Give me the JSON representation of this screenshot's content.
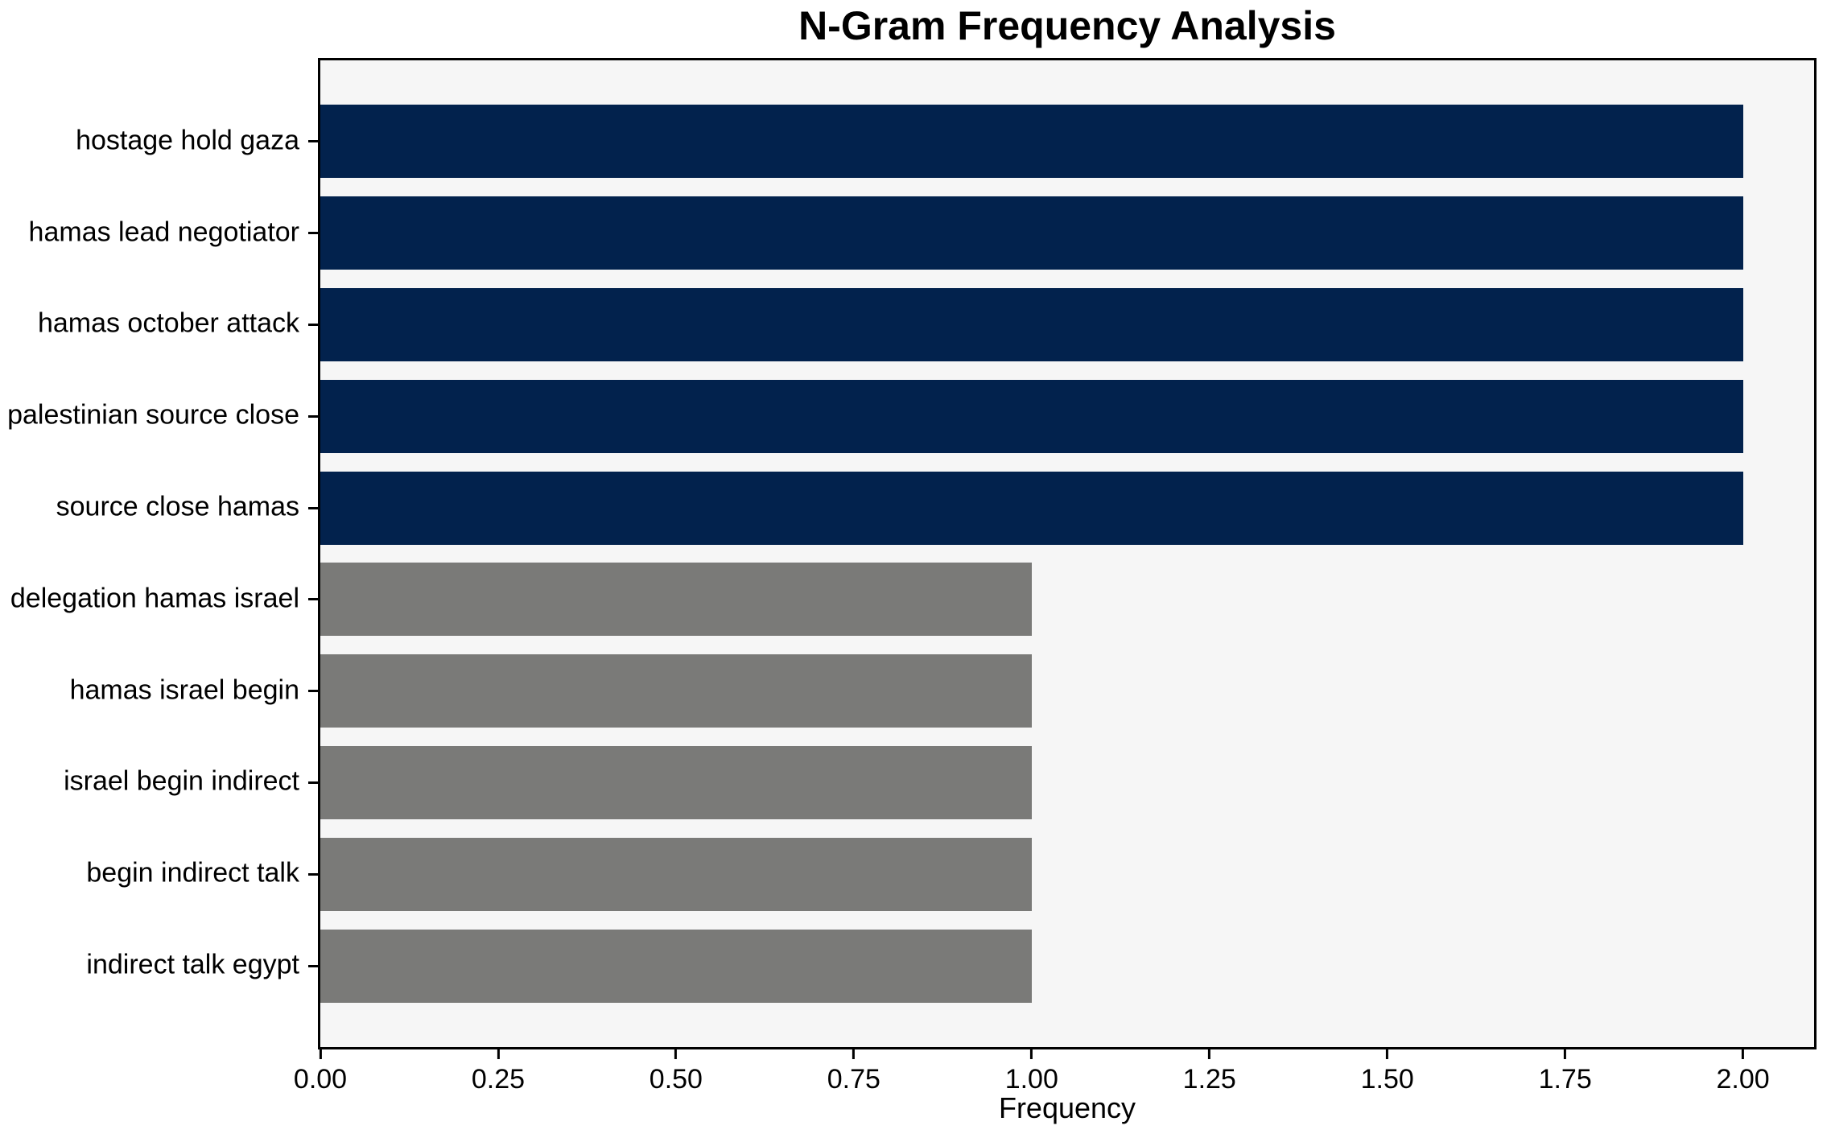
{
  "figure": {
    "background_color": "#ffffff",
    "plot_background_color": "#f6f6f6",
    "frame_color": "#000000"
  },
  "chart_data": {
    "type": "bar",
    "orientation": "horizontal",
    "title": "N-Gram Frequency Analysis",
    "xlabel": "Frequency",
    "ylabel": "",
    "grid": false,
    "legend": null,
    "categories": [
      "hostage hold gaza",
      "hamas lead negotiator",
      "hamas october attack",
      "palestinian source close",
      "source close hamas",
      "delegation hamas israel",
      "hamas israel begin",
      "israel begin indirect",
      "begin indirect talk",
      "indirect talk egypt"
    ],
    "values": [
      2.0,
      2.0,
      2.0,
      2.0,
      2.0,
      1.0,
      1.0,
      1.0,
      1.0,
      1.0
    ],
    "bar_colors": [
      "#02224d",
      "#02224d",
      "#02224d",
      "#02224d",
      "#02224d",
      "#7a7a78",
      "#7a7a78",
      "#7a7a78",
      "#7a7a78",
      "#7a7a78"
    ],
    "color_legend": {
      "high_frequency_color": "#02224d",
      "low_frequency_color": "#7a7a78"
    },
    "xlim": [
      0,
      2.1
    ],
    "xticks": [
      {
        "value": 0.0,
        "label": "0.00"
      },
      {
        "value": 0.25,
        "label": "0.25"
      },
      {
        "value": 0.5,
        "label": "0.50"
      },
      {
        "value": 0.75,
        "label": "0.75"
      },
      {
        "value": 1.0,
        "label": "1.00"
      },
      {
        "value": 1.25,
        "label": "1.25"
      },
      {
        "value": 1.5,
        "label": "1.50"
      },
      {
        "value": 1.75,
        "label": "1.75"
      },
      {
        "value": 2.0,
        "label": "2.00"
      }
    ]
  }
}
